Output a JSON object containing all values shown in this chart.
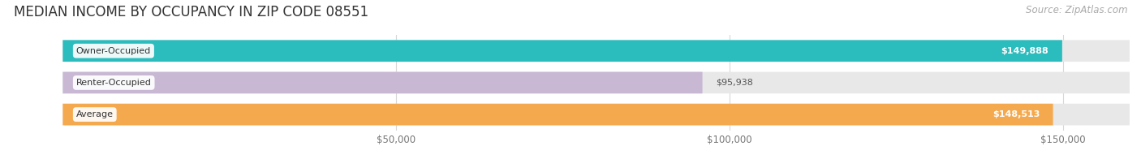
{
  "title": "MEDIAN INCOME BY OCCUPANCY IN ZIP CODE 08551",
  "source": "Source: ZipAtlas.com",
  "categories": [
    "Owner-Occupied",
    "Renter-Occupied",
    "Average"
  ],
  "values": [
    149888,
    95938,
    148513
  ],
  "bar_colors": [
    "#2bbcbe",
    "#c9b8d4",
    "#f5a94e"
  ],
  "value_labels": [
    "$149,888",
    "$95,938",
    "$148,513"
  ],
  "value_inside": [
    true,
    false,
    true
  ],
  "xlim": [
    0,
    160000
  ],
  "xticks": [
    50000,
    100000,
    150000
  ],
  "xtick_labels": [
    "$50,000",
    "$100,000",
    "$150,000"
  ],
  "background_color": "#ffffff",
  "bar_background": "#e8e8e8",
  "title_fontsize": 12,
  "source_fontsize": 8.5,
  "bar_height": 0.68,
  "figsize": [
    14.06,
    1.96
  ],
  "dpi": 100
}
